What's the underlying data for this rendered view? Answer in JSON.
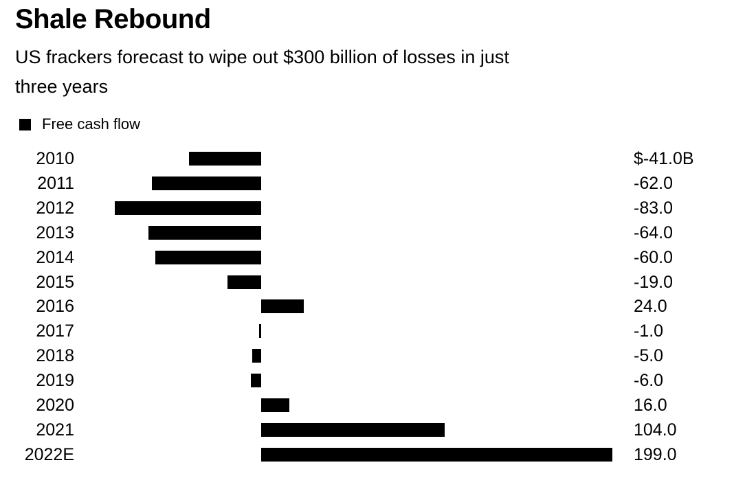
{
  "header": {
    "title": "Shale Rebound",
    "subtitle_line1": "US frackers forecast to wipe out $300 billion of losses in just",
    "subtitle_line2": "three years"
  },
  "legend": {
    "label": "Free cash flow",
    "swatch_color": "#000000"
  },
  "chart_data": {
    "type": "bar",
    "orientation": "horizontal",
    "title": "Shale Rebound",
    "subtitle": "US frackers forecast to wipe out $300 billion of losses in just three years",
    "legend_entries": [
      "Free cash flow"
    ],
    "categories": [
      "2010",
      "2011",
      "2012",
      "2013",
      "2014",
      "2015",
      "2016",
      "2017",
      "2018",
      "2019",
      "2020",
      "2021",
      "2022E"
    ],
    "values": [
      -41.0,
      -62.0,
      -83.0,
      -64.0,
      -60.0,
      -19.0,
      24.0,
      -1.0,
      -5.0,
      -6.0,
      16.0,
      104.0,
      199.0
    ],
    "value_labels": [
      "$-41.0B",
      "-62.0",
      "-83.0",
      "-64.0",
      "-60.0",
      "-19.0",
      "24.0",
      "-1.0",
      "-5.0",
      "-6.0",
      "16.0",
      "104.0",
      "199.0"
    ],
    "xlim": [
      -83,
      199
    ],
    "bar_color": "#000000",
    "grid": false,
    "legend_position": "top-left",
    "value_label_position": "right-column"
  }
}
